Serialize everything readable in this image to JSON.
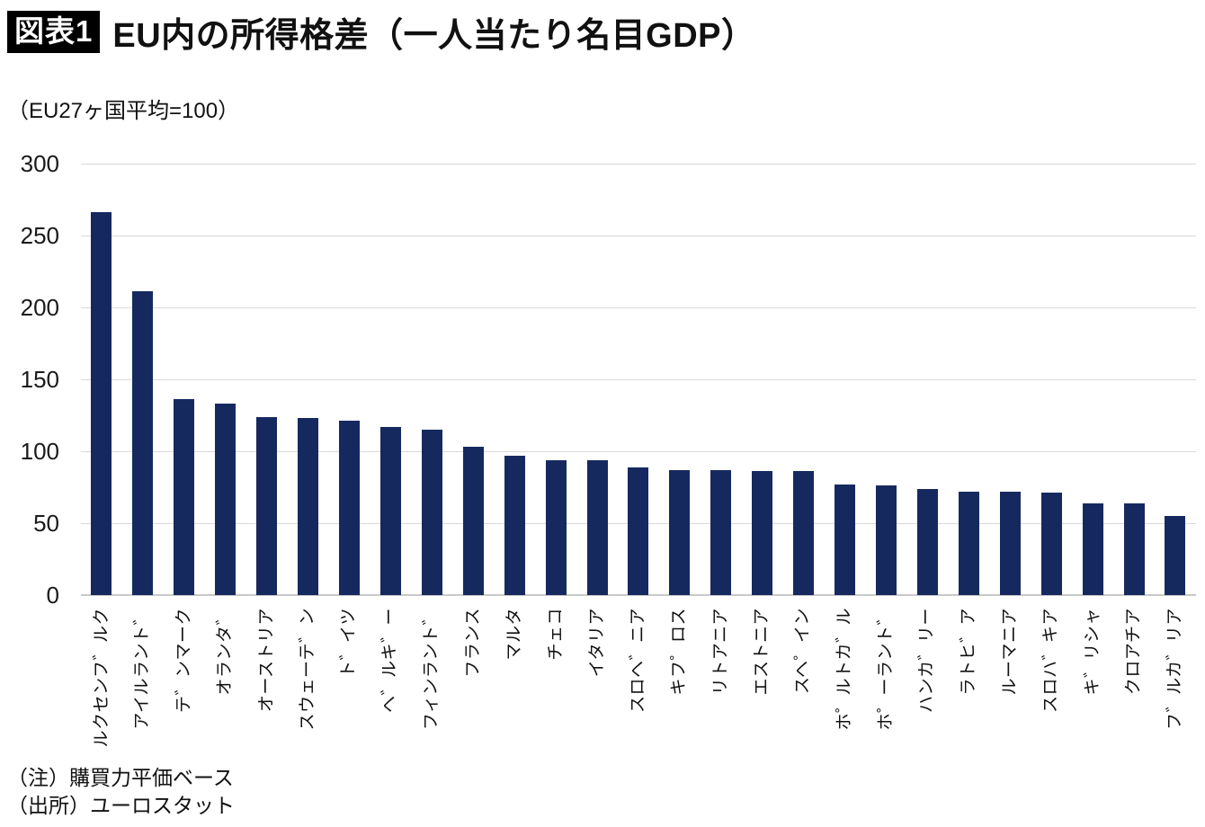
{
  "header": {
    "badge": "図表1",
    "title": "EU内の所得格差（一人当たり名目GDP）"
  },
  "subtitle": "（EU27ヶ国平均=100）",
  "notes": {
    "note1": "（注）購買力平価ベース",
    "note2": "（出所）ユーロスタット"
  },
  "chart_data": {
    "type": "bar",
    "title": "EU内の所得格差（一人当たり名目GDP）",
    "subtitle": "（EU27ヶ国平均=100）",
    "categories": [
      "ルクセンフ゛ルク",
      "アイルラント゛",
      "テ゛ンマーク",
      "オランタ゛",
      "オーストリア",
      "スウェーテ゛ン",
      "ト゛イツ",
      "ヘ゛ルキ゛ー",
      "フィンラント゛",
      "フランス",
      "マルタ",
      "チェコ",
      "イタリア",
      "スロヘ゛ニア",
      "キフ゜ロス",
      "リトアニア",
      "エストニア",
      "スヘ゜イン",
      "ホ゜ルトカ゛ル",
      "ホ゜ーラント゛",
      "ハンカ゛リー",
      "ラトヒ゛ア",
      "ルーマニア",
      "スロハ゛キア",
      "キ゛リシャ",
      "クロアチア",
      "フ゛ルカ゛リア"
    ],
    "values": [
      266,
      211,
      136,
      133,
      124,
      123,
      121,
      117,
      115,
      103,
      97,
      94,
      94,
      89,
      87,
      87,
      86,
      86,
      77,
      76,
      74,
      72,
      72,
      71,
      64,
      64,
      55
    ],
    "xlabel": "",
    "ylabel": "",
    "ylim": [
      0,
      300
    ],
    "yticks": [
      0,
      50,
      100,
      150,
      200,
      250,
      300
    ],
    "grid": true,
    "legend": "none",
    "bar_color": "#16295F",
    "gridline_color": "#d9d9d9"
  }
}
